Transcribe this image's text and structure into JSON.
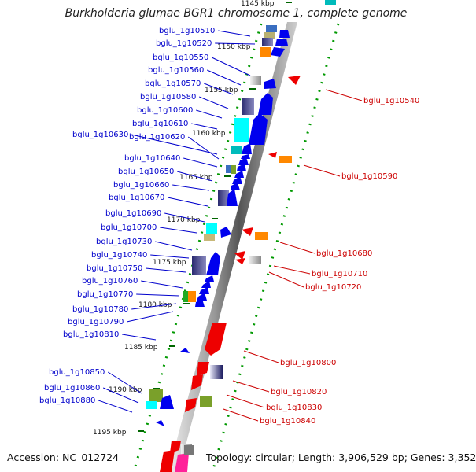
{
  "title": "Burkholderia glumae BGR1 chromosome 1, complete genome",
  "footer": {
    "accession": "Accession: NC_012724",
    "topology": "Topology: circular; Length: 3,906,529 bp; Genes: 3,352"
  },
  "colors": {
    "label_left": "#0000cc",
    "label_right": "#cc0000",
    "tick": "#006600",
    "axis_dark": "#666666",
    "axis_light": "#bbbbbb",
    "gene_blue": "#0000ee",
    "gene_red": "#ee0000",
    "dot_green": "#009900"
  },
  "axis_ticks": [
    "1145 kbp",
    "1150 kbp",
    "1155 kbp",
    "1160 kbp",
    "1165 kbp",
    "1170 kbp",
    "1175 kbp",
    "1180 kbp",
    "1185 kbp",
    "1190 kbp",
    "1195 kbp"
  ],
  "left_labels": [
    "bglu_1g10510",
    "bglu_1g10520",
    "bglu_1g10550",
    "bglu_1g10560",
    "bglu_1g10570",
    "bglu_1g10580",
    "bglu_1g10600",
    "bglu_1g10610",
    "bglu_1g10630",
    "bglu_1g10620",
    "bglu_1g10640",
    "bglu_1g10650",
    "bglu_1g10660",
    "bglu_1g10670",
    "bglu_1g10690",
    "bglu_1g10700",
    "bglu_1g10730",
    "bglu_1g10740",
    "bglu_1g10750",
    "bglu_1g10760",
    "bglu_1g10770",
    "bglu_1g10780",
    "bglu_1g10790",
    "bglu_1g10810",
    "bglu_1g10850",
    "bglu_1g10860",
    "bglu_1g10880"
  ],
  "right_labels": [
    "bglu_1g10540",
    "bglu_1g10590",
    "bglu_1g10680",
    "bglu_1g10710",
    "bglu_1g10720",
    "bglu_1g10800",
    "bglu_1g10820",
    "bglu_1g10830",
    "bglu_1g10840"
  ]
}
